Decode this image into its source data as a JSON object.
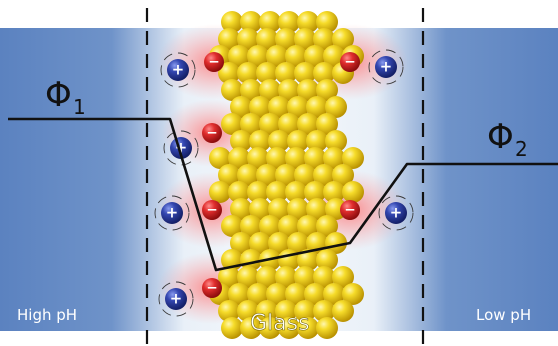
{
  "labels": {
    "phi_left": "Φ",
    "phi_left_sub": "1",
    "phi_right": "Φ",
    "phi_right_sub": "2",
    "left_region": "High pH",
    "right_region": "Low pH",
    "center_material": "Glass"
  },
  "ion_signs": {
    "positive": "+",
    "negative": "−"
  },
  "colors": {
    "solution_blue": "#5f86c3",
    "pale_blue": "#dbe6f4",
    "glass_yellow": "#f3d21a",
    "negative_red": "#d42a2a",
    "positive_blue": "#2b3f9e",
    "potential_line": "#111111"
  }
}
